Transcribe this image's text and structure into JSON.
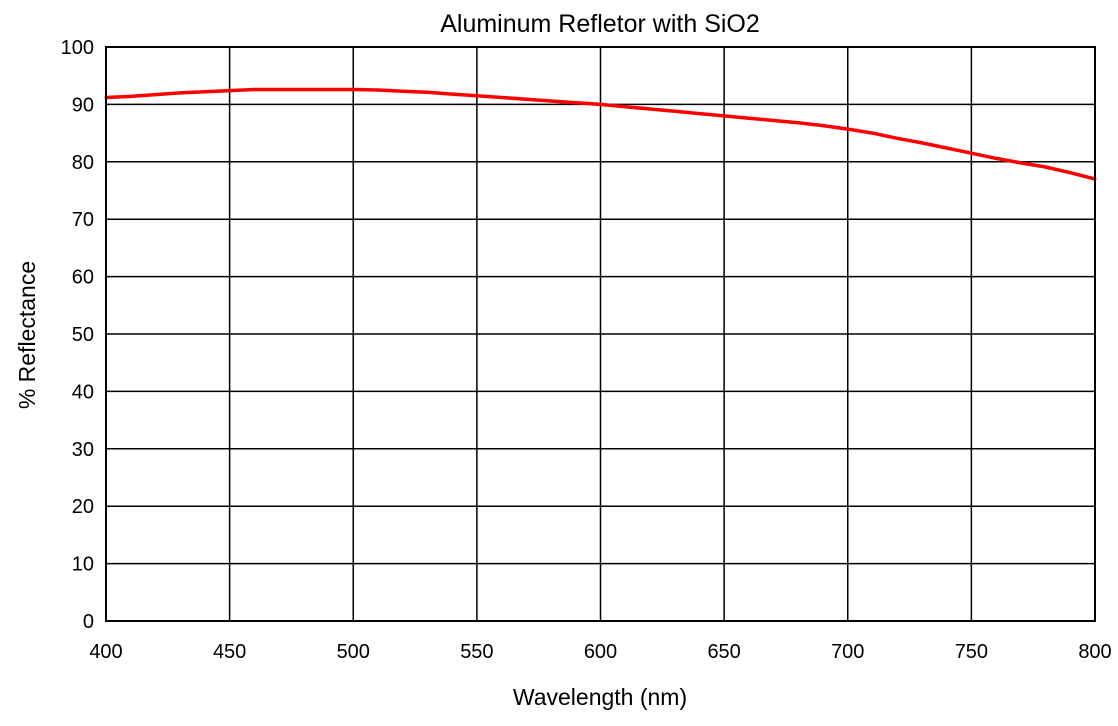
{
  "chart_data": {
    "type": "line",
    "title": "Aluminum Refletor with SiO2",
    "xlabel": "Wavelength (nm)",
    "ylabel": "% Reflectance",
    "xlim": [
      400,
      800
    ],
    "ylim": [
      0,
      100
    ],
    "x_ticks": [
      "400",
      "450",
      "500",
      "550",
      "600",
      "650",
      "700",
      "750",
      "800"
    ],
    "y_ticks": [
      "0",
      "10",
      "20",
      "30",
      "40",
      "50",
      "60",
      "70",
      "80",
      "90",
      "100"
    ],
    "grid": true,
    "legend": "none",
    "series": [
      {
        "color": "#ff0000",
        "x": [
          400,
          410,
          420,
          430,
          440,
          450,
          460,
          470,
          480,
          490,
          500,
          510,
          520,
          530,
          540,
          550,
          560,
          570,
          580,
          590,
          600,
          610,
          620,
          630,
          640,
          650,
          660,
          670,
          680,
          690,
          700,
          710,
          720,
          730,
          740,
          750,
          760,
          770,
          780,
          790,
          800
        ],
        "y": [
          91.2,
          91.4,
          91.7,
          92.0,
          92.2,
          92.4,
          92.6,
          92.6,
          92.6,
          92.6,
          92.6,
          92.5,
          92.3,
          92.1,
          91.8,
          91.5,
          91.2,
          90.9,
          90.6,
          90.3,
          90.0,
          89.6,
          89.2,
          88.8,
          88.4,
          88.0,
          87.6,
          87.2,
          86.8,
          86.3,
          85.7,
          85.0,
          84.1,
          83.3,
          82.4,
          81.5,
          80.6,
          79.8,
          79.1,
          78.1,
          77.0
        ]
      }
    ]
  }
}
